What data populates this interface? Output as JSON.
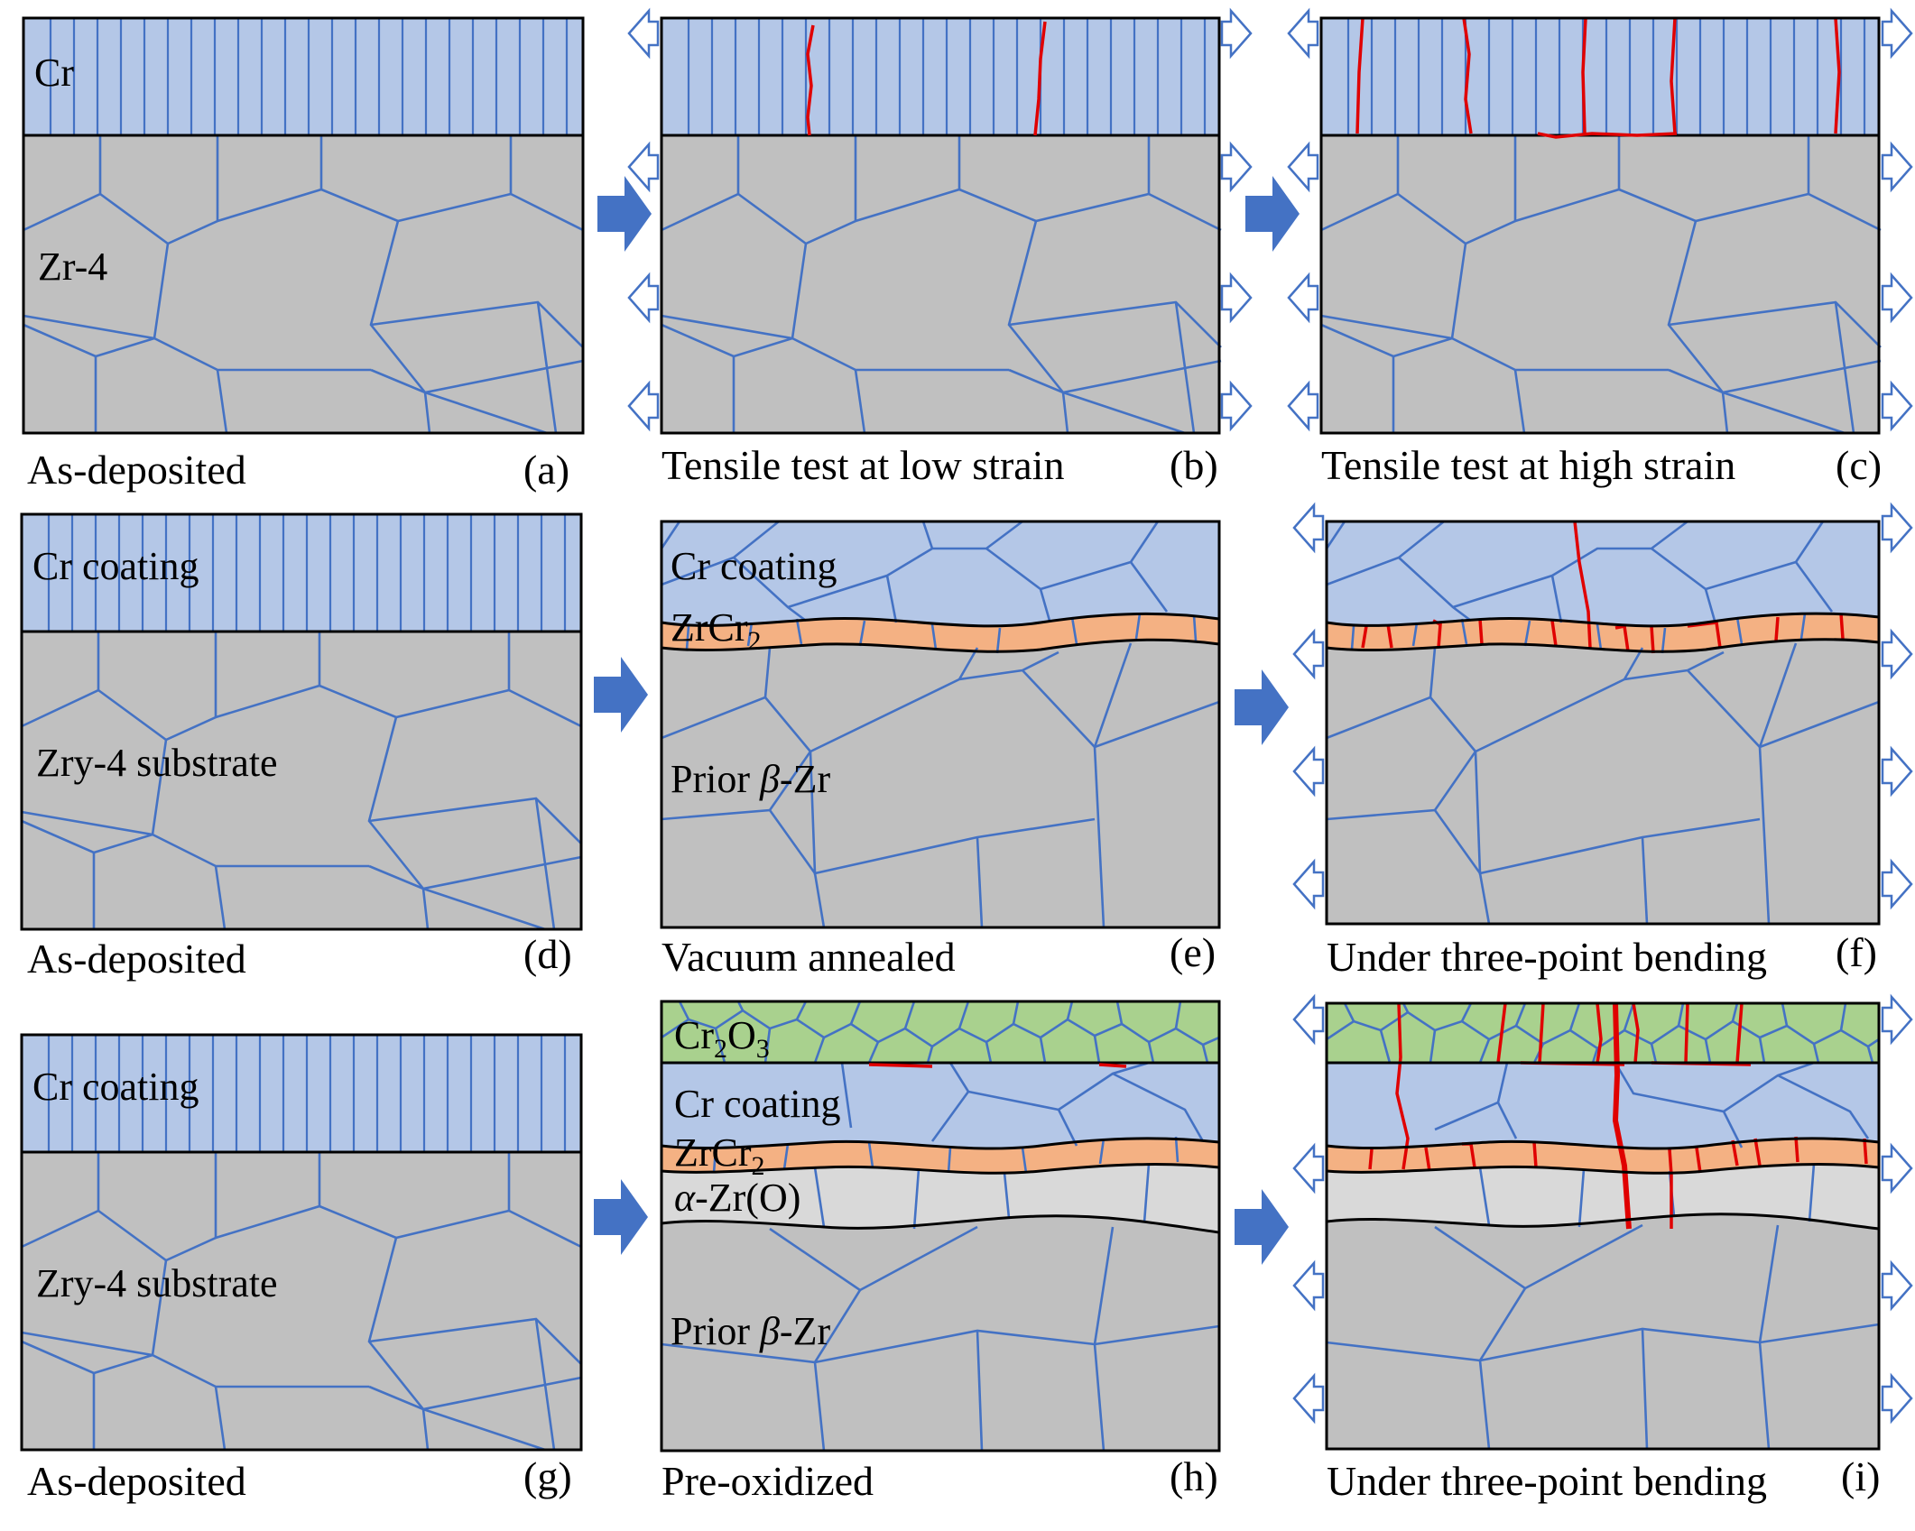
{
  "panels": {
    "a": {
      "id": "(a)",
      "caption": "As-deposited",
      "layers": [
        "Cr",
        "Zr-4"
      ]
    },
    "b": {
      "id": "(b)",
      "caption": "Tensile test at low strain"
    },
    "c": {
      "id": "(c)",
      "caption": "Tensile test at high strain"
    },
    "d": {
      "id": "(d)",
      "caption": "As-deposited",
      "layers": [
        "Cr coating",
        "Zry-4 substrate"
      ]
    },
    "e": {
      "id": "(e)",
      "caption": "Vacuum annealed",
      "layers": [
        "Cr coating",
        "ZrCr",
        "Prior ",
        "β",
        "-Zr"
      ],
      "sub": "2"
    },
    "f": {
      "id": "(f)",
      "caption": "Under three-point bending"
    },
    "g": {
      "id": "(g)",
      "caption": "As-deposited",
      "layers": [
        "Cr coating",
        "Zry-4 substrate"
      ]
    },
    "h": {
      "id": "(h)",
      "caption": "Pre-oxidized",
      "layers": [
        "Cr",
        "O",
        "Cr coating",
        "ZrCr",
        "α",
        "-Zr(O)",
        "Prior ",
        "β",
        "-Zr"
      ],
      "subs": [
        "2",
        "3",
        "2"
      ]
    },
    "i": {
      "id": "(i)",
      "caption": "Under three-point bending"
    }
  },
  "colors": {
    "chromium": "#b4c7e7",
    "substrate": "#c0c0c0",
    "zrcr2": "#f4b183",
    "alpha_zr": "#d9d9d9",
    "cr2o3": "#a9d18e",
    "grain_boundary": "#4472c4",
    "crack": "#e00000"
  },
  "icons": {
    "tension": "hollow-arrow-icon",
    "sequence": "block-arrow-right-icon"
  }
}
